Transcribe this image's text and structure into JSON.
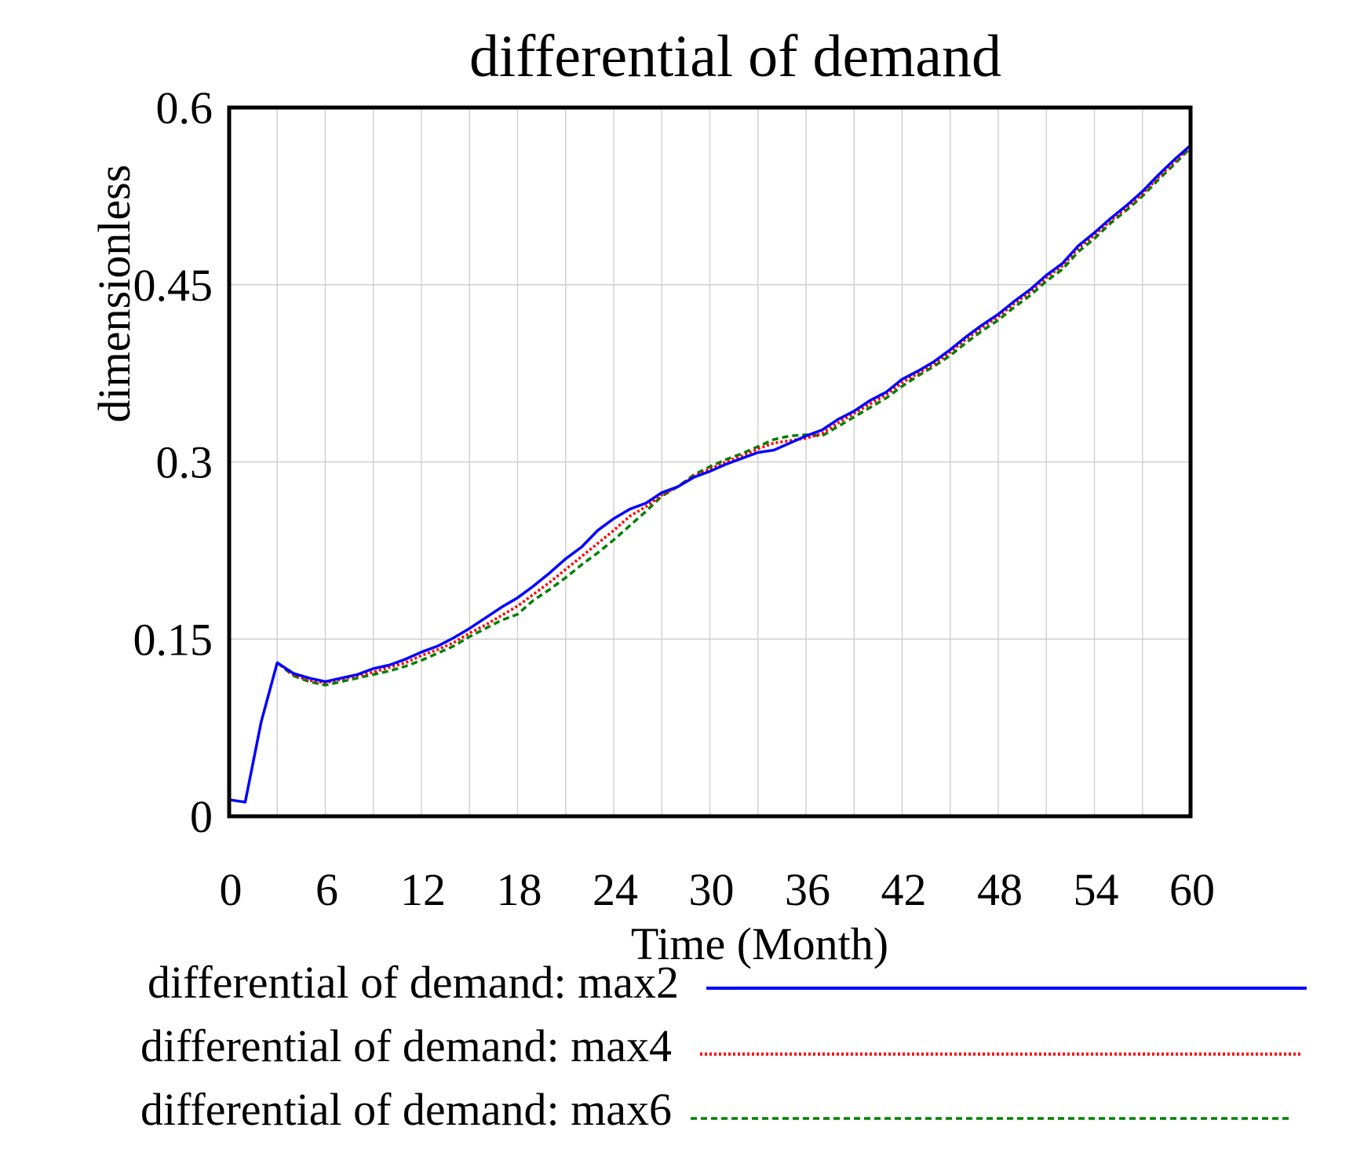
{
  "chart_data": {
    "type": "line",
    "title": "differential of demand",
    "xlabel": "Time (Month)",
    "ylabel": "dimensionless",
    "xlim": [
      0,
      60
    ],
    "ylim": [
      0,
      0.6
    ],
    "x_ticks": [
      0,
      6,
      12,
      18,
      24,
      30,
      36,
      42,
      48,
      54,
      60
    ],
    "x_tick_labels": [
      "0",
      "6",
      "12",
      "18",
      "24",
      "30",
      "36",
      "42",
      "48",
      "54",
      "60"
    ],
    "y_ticks": [
      0,
      0.15,
      0.3,
      0.45,
      0.6
    ],
    "y_tick_labels": [
      "0",
      "0.15",
      "0.3",
      "0.45",
      "0.6"
    ],
    "grid": true,
    "legend_position": "bottom",
    "series": [
      {
        "name": "differential of demand: max2",
        "color": "#0000ff",
        "style": "solid",
        "points": [
          [
            0,
            0.014
          ],
          [
            1,
            0.012
          ],
          [
            2,
            0.08
          ],
          [
            3,
            0.13
          ],
          [
            4,
            0.121
          ],
          [
            5,
            0.117
          ],
          [
            6,
            0.114
          ],
          [
            7,
            0.117
          ],
          [
            8,
            0.12
          ],
          [
            9,
            0.125
          ],
          [
            10,
            0.128
          ],
          [
            11,
            0.133
          ],
          [
            12,
            0.139
          ],
          [
            13,
            0.144
          ],
          [
            14,
            0.151
          ],
          [
            15,
            0.159
          ],
          [
            16,
            0.168
          ],
          [
            17,
            0.177
          ],
          [
            18,
            0.185
          ],
          [
            19,
            0.195
          ],
          [
            20,
            0.206
          ],
          [
            21,
            0.218
          ],
          [
            22,
            0.228
          ],
          [
            23,
            0.242
          ],
          [
            24,
            0.252
          ],
          [
            25,
            0.26
          ],
          [
            26,
            0.265
          ],
          [
            27,
            0.274
          ],
          [
            28,
            0.279
          ],
          [
            29,
            0.287
          ],
          [
            30,
            0.292
          ],
          [
            31,
            0.298
          ],
          [
            32,
            0.303
          ],
          [
            33,
            0.308
          ],
          [
            34,
            0.31
          ],
          [
            35,
            0.316
          ],
          [
            36,
            0.322
          ],
          [
            37,
            0.327
          ],
          [
            38,
            0.336
          ],
          [
            39,
            0.343
          ],
          [
            40,
            0.352
          ],
          [
            41,
            0.359
          ],
          [
            42,
            0.37
          ],
          [
            43,
            0.377
          ],
          [
            44,
            0.385
          ],
          [
            45,
            0.395
          ],
          [
            46,
            0.406
          ],
          [
            47,
            0.416
          ],
          [
            48,
            0.425
          ],
          [
            49,
            0.436
          ],
          [
            50,
            0.446
          ],
          [
            51,
            0.458
          ],
          [
            52,
            0.468
          ],
          [
            53,
            0.483
          ],
          [
            54,
            0.494
          ],
          [
            55,
            0.506
          ],
          [
            56,
            0.517
          ],
          [
            57,
            0.529
          ],
          [
            58,
            0.543
          ],
          [
            59,
            0.556
          ],
          [
            60,
            0.568
          ]
        ]
      },
      {
        "name": "differential of demand: max4",
        "color": "#ff0000",
        "style": "dotted",
        "points": [
          [
            3,
            0.13
          ],
          [
            4,
            0.12
          ],
          [
            5,
            0.115
          ],
          [
            6,
            0.113
          ],
          [
            7,
            0.116
          ],
          [
            8,
            0.119
          ],
          [
            9,
            0.122
          ],
          [
            10,
            0.126
          ],
          [
            11,
            0.13
          ],
          [
            12,
            0.136
          ],
          [
            13,
            0.141
          ],
          [
            14,
            0.147
          ],
          [
            15,
            0.155
          ],
          [
            16,
            0.162
          ],
          [
            17,
            0.17
          ],
          [
            18,
            0.178
          ],
          [
            19,
            0.188
          ],
          [
            20,
            0.198
          ],
          [
            21,
            0.209
          ],
          [
            22,
            0.22
          ],
          [
            23,
            0.231
          ],
          [
            24,
            0.242
          ],
          [
            25,
            0.254
          ],
          [
            26,
            0.262
          ],
          [
            27,
            0.272
          ],
          [
            28,
            0.279
          ],
          [
            29,
            0.288
          ],
          [
            30,
            0.294
          ],
          [
            31,
            0.3
          ],
          [
            32,
            0.305
          ],
          [
            33,
            0.311
          ],
          [
            34,
            0.316
          ],
          [
            35,
            0.318
          ],
          [
            36,
            0.32
          ],
          [
            37,
            0.324
          ],
          [
            38,
            0.333
          ],
          [
            39,
            0.341
          ],
          [
            40,
            0.349
          ],
          [
            41,
            0.357
          ],
          [
            42,
            0.367
          ],
          [
            43,
            0.375
          ],
          [
            44,
            0.383
          ],
          [
            45,
            0.393
          ],
          [
            46,
            0.404
          ],
          [
            47,
            0.414
          ],
          [
            48,
            0.423
          ],
          [
            49,
            0.434
          ],
          [
            50,
            0.444
          ],
          [
            51,
            0.456
          ],
          [
            52,
            0.466
          ],
          [
            53,
            0.481
          ],
          [
            54,
            0.492
          ],
          [
            55,
            0.504
          ],
          [
            56,
            0.515
          ],
          [
            57,
            0.527
          ],
          [
            58,
            0.541
          ],
          [
            59,
            0.554
          ],
          [
            60,
            0.567
          ]
        ]
      },
      {
        "name": "differential of demand: max6",
        "color": "#008000",
        "style": "dashed",
        "points": [
          [
            3,
            0.13
          ],
          [
            4,
            0.119
          ],
          [
            5,
            0.114
          ],
          [
            6,
            0.111
          ],
          [
            7,
            0.114
          ],
          [
            8,
            0.117
          ],
          [
            9,
            0.12
          ],
          [
            10,
            0.123
          ],
          [
            11,
            0.127
          ],
          [
            12,
            0.132
          ],
          [
            13,
            0.138
          ],
          [
            14,
            0.144
          ],
          [
            15,
            0.152
          ],
          [
            16,
            0.159
          ],
          [
            17,
            0.166
          ],
          [
            18,
            0.171
          ],
          [
            19,
            0.183
          ],
          [
            20,
            0.192
          ],
          [
            21,
            0.202
          ],
          [
            22,
            0.213
          ],
          [
            23,
            0.223
          ],
          [
            24,
            0.234
          ],
          [
            25,
            0.246
          ],
          [
            26,
            0.258
          ],
          [
            27,
            0.271
          ],
          [
            28,
            0.279
          ],
          [
            29,
            0.289
          ],
          [
            30,
            0.296
          ],
          [
            31,
            0.302
          ],
          [
            32,
            0.307
          ],
          [
            33,
            0.313
          ],
          [
            34,
            0.319
          ],
          [
            35,
            0.322
          ],
          [
            36,
            0.323
          ],
          [
            37,
            0.322
          ],
          [
            38,
            0.33
          ],
          [
            39,
            0.338
          ],
          [
            40,
            0.346
          ],
          [
            41,
            0.354
          ],
          [
            42,
            0.364
          ],
          [
            43,
            0.373
          ],
          [
            44,
            0.381
          ],
          [
            45,
            0.39
          ],
          [
            46,
            0.401
          ],
          [
            47,
            0.411
          ],
          [
            48,
            0.42
          ],
          [
            49,
            0.431
          ],
          [
            50,
            0.441
          ],
          [
            51,
            0.453
          ],
          [
            52,
            0.463
          ],
          [
            53,
            0.478
          ],
          [
            54,
            0.489
          ],
          [
            55,
            0.502
          ],
          [
            56,
            0.513
          ],
          [
            57,
            0.525
          ],
          [
            58,
            0.539
          ],
          [
            59,
            0.552
          ],
          [
            60,
            0.566
          ]
        ]
      }
    ]
  }
}
